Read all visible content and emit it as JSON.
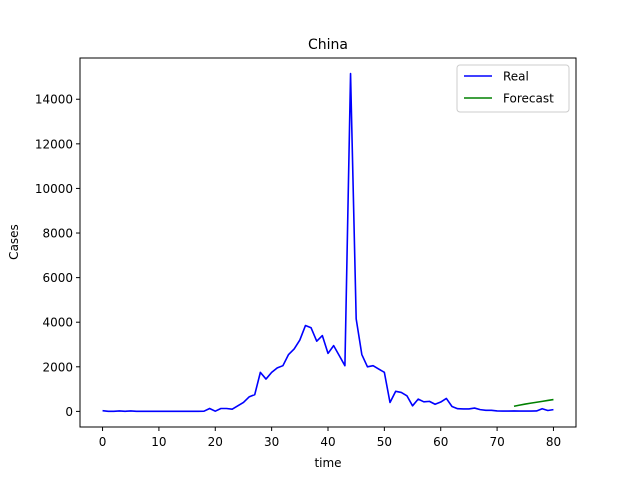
{
  "chart_data": {
    "type": "line",
    "title": "China",
    "xlabel": "time",
    "ylabel": "Cases",
    "xlim": [
      -4,
      84
    ],
    "ylim": [
      -700,
      15850
    ],
    "xticks": [
      0,
      10,
      20,
      30,
      40,
      50,
      60,
      70,
      80
    ],
    "yticks": [
      0,
      2000,
      4000,
      6000,
      8000,
      10000,
      12000,
      14000
    ],
    "grid": false,
    "legend_position": "top-right",
    "series": [
      {
        "name": "Real",
        "color": "#0000ff",
        "x": [
          0,
          1,
          2,
          3,
          4,
          5,
          6,
          7,
          8,
          9,
          10,
          11,
          12,
          13,
          14,
          15,
          16,
          17,
          18,
          19,
          20,
          21,
          22,
          23,
          24,
          25,
          26,
          27,
          28,
          29,
          30,
          31,
          32,
          33,
          34,
          35,
          36,
          37,
          38,
          39,
          40,
          41,
          42,
          43,
          44,
          45,
          46,
          47,
          48,
          49,
          50,
          51,
          52,
          53,
          54,
          55,
          56,
          57,
          58,
          59,
          60,
          61,
          62,
          63,
          64,
          65,
          66,
          67,
          68,
          69,
          70,
          71,
          72,
          73,
          74,
          75,
          76,
          77,
          78,
          79,
          80
        ],
        "values": [
          30,
          5,
          5,
          20,
          5,
          20,
          5,
          5,
          5,
          5,
          5,
          5,
          5,
          5,
          5,
          5,
          5,
          5,
          10,
          130,
          10,
          130,
          130,
          100,
          250,
          400,
          650,
          750,
          1750,
          1450,
          1750,
          1950,
          2050,
          2550,
          2800,
          3200,
          3850,
          3750,
          3150,
          3400,
          2600,
          2950,
          2500,
          2050,
          15150,
          4150,
          2550,
          2000,
          2050,
          1900,
          1750,
          400,
          900,
          850,
          700,
          250,
          550,
          430,
          450,
          320,
          420,
          580,
          220,
          120,
          110,
          110,
          150,
          80,
          50,
          50,
          20,
          15,
          15,
          20,
          15,
          15,
          15,
          20,
          120,
          40,
          80
        ]
      },
      {
        "name": "Forecast",
        "color": "#008000",
        "x": [
          73,
          74,
          75,
          76,
          77,
          78,
          79,
          80
        ],
        "values": [
          230,
          280,
          330,
          370,
          410,
          450,
          490,
          530
        ]
      }
    ]
  }
}
